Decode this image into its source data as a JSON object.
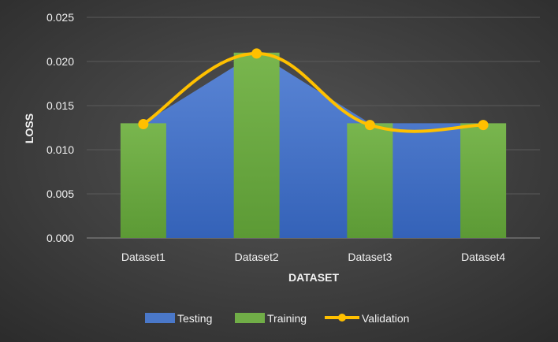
{
  "chart_data": {
    "type": "bar",
    "title": "",
    "xlabel": "DATASET",
    "ylabel": "LOSS",
    "categories": [
      "Dataset1",
      "Dataset2",
      "Dataset3",
      "Dataset4"
    ],
    "ylim": [
      0,
      0.025
    ],
    "yticks": [
      "0.000",
      "0.005",
      "0.010",
      "0.015",
      "0.020",
      "0.025"
    ],
    "grid": true,
    "legend_position": "bottom",
    "series": [
      {
        "name": "Testing",
        "type": "area",
        "values": [
          0.013,
          0.021,
          0.013,
          0.013
        ],
        "color": "#4472c4"
      },
      {
        "name": "Training",
        "type": "bar",
        "values": [
          0.013,
          0.021,
          0.013,
          0.013
        ],
        "color": "#70ad47"
      },
      {
        "name": "Validation",
        "type": "line",
        "smooth": true,
        "values": [
          0.0129,
          0.0209,
          0.0128,
          0.0128
        ],
        "color": "#ffc000"
      }
    ]
  }
}
